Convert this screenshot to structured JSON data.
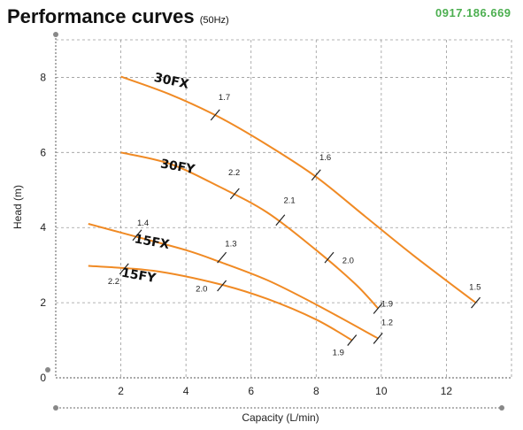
{
  "header": {
    "title": "Performance curves",
    "unit": "(50Hz)",
    "watermark": "0917.186.669"
  },
  "chart_data": {
    "type": "line",
    "title": "Performance curves (50Hz)",
    "xlabel": "Capacity (L/min)",
    "ylabel": "Head (m)",
    "xlim": [
      0,
      14
    ],
    "ylim": [
      0,
      9
    ],
    "xticks": [
      2,
      4,
      6,
      8,
      10,
      12
    ],
    "yticks": [
      0,
      2,
      4,
      6,
      8
    ],
    "grid": true,
    "line_color": "#f08a24",
    "series": [
      {
        "name": "30FX",
        "label_pos": [
          1.0,
          7.9
        ],
        "x": [
          2.0,
          3.5,
          5.0,
          6.5,
          8.0,
          9.5,
          11.0,
          12.9
        ],
        "y": [
          8.02,
          7.55,
          6.95,
          6.2,
          5.35,
          4.3,
          3.25,
          2.0
        ],
        "annotations": [
          {
            "x": 4.9,
            "y": 7.0,
            "text": "1.7",
            "dx": 0.1,
            "dy": 0.4
          },
          {
            "x": 8.0,
            "y": 5.4,
            "text": "1.6",
            "dx": 0.1,
            "dy": 0.4
          },
          {
            "x": 12.9,
            "y": 2.0,
            "text": "1.5",
            "dx": -0.2,
            "dy": 0.35
          }
        ]
      },
      {
        "name": "30FY",
        "label_pos": [
          1.2,
          5.6
        ],
        "x": [
          2.0,
          3.5,
          5.0,
          6.5,
          8.0,
          9.2,
          9.9
        ],
        "y": [
          6.0,
          5.7,
          5.1,
          4.4,
          3.4,
          2.5,
          1.85
        ],
        "annotations": [
          {
            "x": 5.5,
            "y": 4.9,
            "text": "2.2",
            "dx": -0.2,
            "dy": 0.5
          },
          {
            "x": 6.9,
            "y": 4.2,
            "text": "2.1",
            "dx": 0.1,
            "dy": 0.45
          },
          {
            "x": 8.4,
            "y": 3.2,
            "text": "2.0",
            "dx": 0.4,
            "dy": -0.15
          },
          {
            "x": 9.9,
            "y": 1.85,
            "text": "1.9",
            "dx": 0.1,
            "dy": 0.05
          }
        ]
      },
      {
        "name": "15FX",
        "label_pos": [
          1.4,
          3.6
        ],
        "x": [
          1.0,
          2.5,
          4.0,
          5.0,
          6.5,
          8.0,
          9.9
        ],
        "y": [
          4.1,
          3.75,
          3.4,
          3.1,
          2.6,
          1.95,
          1.05
        ],
        "annotations": [
          {
            "x": 2.5,
            "y": 3.8,
            "text": "1.4",
            "dx": 0.0,
            "dy": 0.25
          },
          {
            "x": 5.1,
            "y": 3.2,
            "text": "1.3",
            "dx": 0.1,
            "dy": 0.3
          },
          {
            "x": 9.9,
            "y": 1.05,
            "text": "1.2",
            "dx": 0.1,
            "dy": 0.35
          }
        ]
      },
      {
        "name": "15FY",
        "label_pos": [
          1.0,
          2.7
        ],
        "x": [
          1.0,
          3.0,
          5.0,
          6.5,
          8.0,
          9.1
        ],
        "y": [
          2.98,
          2.85,
          2.5,
          2.1,
          1.55,
          1.0
        ],
        "annotations": [
          {
            "x": 2.1,
            "y": 2.9,
            "text": "2.2",
            "dx": -0.5,
            "dy": -0.4
          },
          {
            "x": 5.1,
            "y": 2.45,
            "text": "2.0",
            "dx": -0.8,
            "dy": -0.15
          },
          {
            "x": 9.1,
            "y": 1.0,
            "text": "1.9",
            "dx": -0.6,
            "dy": -0.4
          }
        ]
      }
    ]
  }
}
